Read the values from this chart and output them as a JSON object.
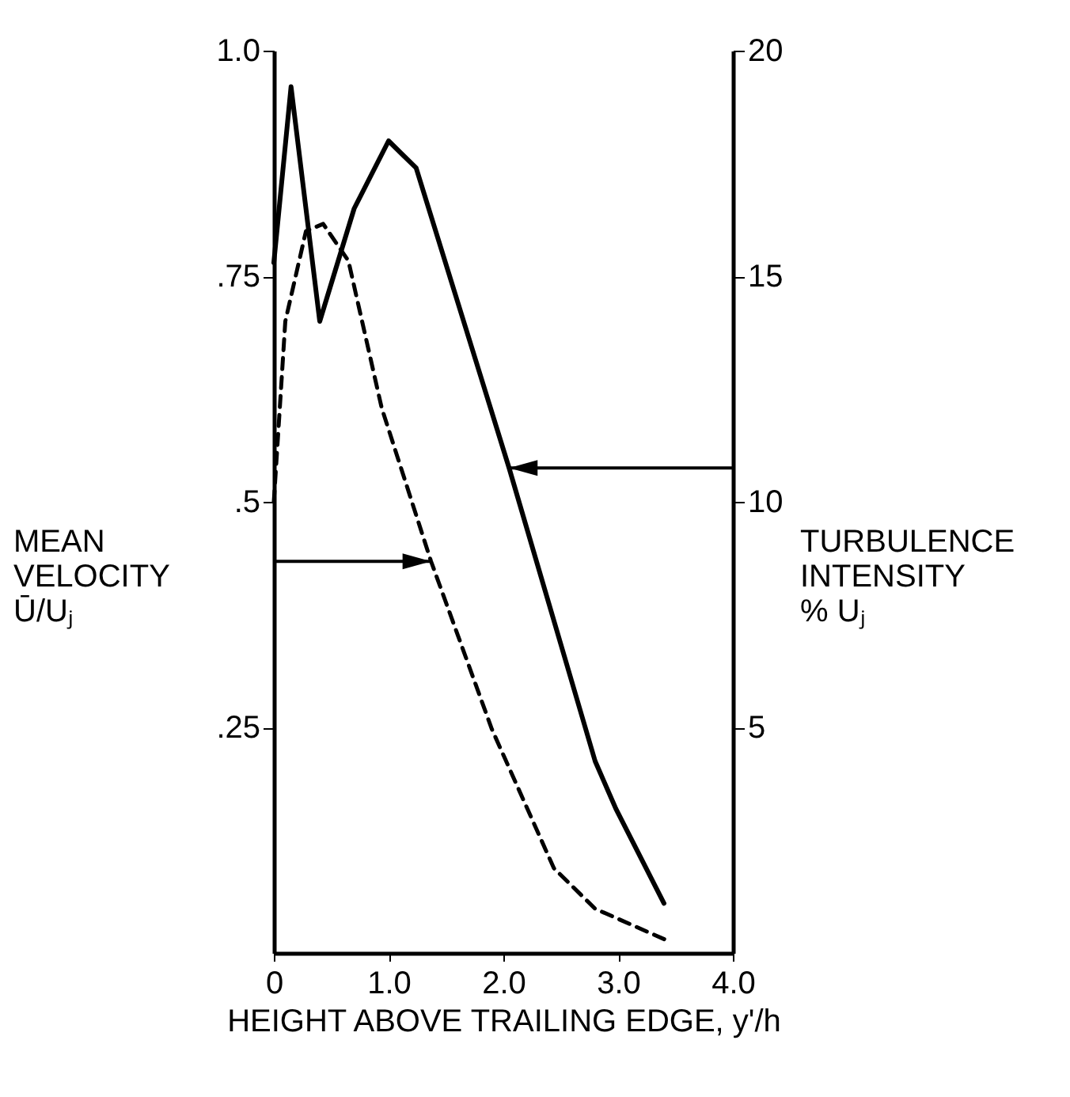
{
  "chart_data": {
    "type": "line",
    "xlabel": "HEIGHT ABOVE TRAILING EDGE, y'/h",
    "ylabel": "MEAN\nVELOCITY\nŪ/Uⱼ",
    "y2label": "TURBULENCE\nINTENSITY\n% Uⱼ",
    "xlim": [
      0,
      4
    ],
    "xticks": [
      {
        "value": 0,
        "label": "0"
      },
      {
        "value": 1,
        "label": "1.0"
      },
      {
        "value": 2,
        "label": "2.0"
      },
      {
        "value": 3,
        "label": "3.0"
      },
      {
        "value": 4,
        "label": "4.0"
      }
    ],
    "ylim": [
      0,
      1
    ],
    "yticks": [
      {
        "value": 0.25,
        "label": ".25"
      },
      {
        "value": 0.5,
        "label": ".5"
      },
      {
        "value": 0.75,
        "label": ".75"
      },
      {
        "value": 1,
        "label": "1.0"
      }
    ],
    "y2lim": [
      0,
      20
    ],
    "y2ticks": [
      5,
      10,
      15,
      20
    ],
    "grid": false,
    "marker": "none",
    "series": [
      {
        "color": "#000000",
        "line_style": "dashed",
        "x": [
          0,
          0.1,
          0.28,
          0.43,
          0.65,
          0.94,
          1.37,
          1.9,
          2.44,
          2.8,
          3.46
        ],
        "values": [
          0.5,
          0.7,
          0.8,
          0.808,
          0.767,
          0.604,
          0.434,
          0.248,
          0.094,
          0.049,
          0.012
        ]
      },
      {
        "color": "#000000",
        "line_style": "solid",
        "axis": "y2",
        "x": [
          0,
          0.15,
          0.4,
          0.7,
          1.0,
          1.24,
          2.05,
          2.8,
          2.98,
          3.4
        ],
        "values": [
          15.3,
          19.2,
          14.0,
          16.5,
          18.0,
          17.4,
          10.75,
          4.25,
          3.2,
          1.1
        ]
      }
    ]
  }
}
